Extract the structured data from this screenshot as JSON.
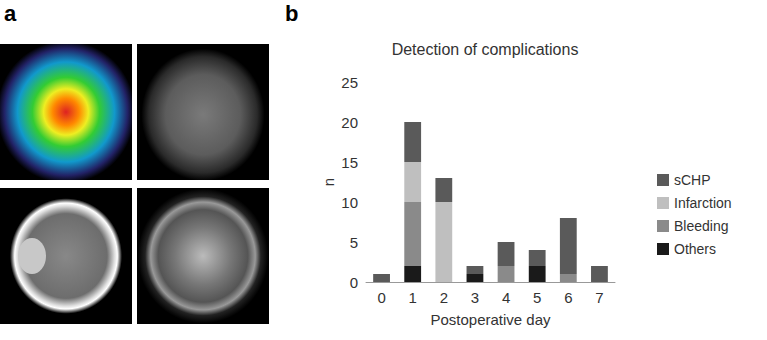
{
  "panel_labels": [
    "a",
    "b"
  ],
  "chart_data": {
    "type": "bar",
    "title": "Detection of complications",
    "x_label": "Postoperative day",
    "y_label": "n",
    "categories": [
      "0",
      "1",
      "2",
      "3",
      "4",
      "5",
      "6",
      "7"
    ],
    "stacked": true,
    "grid": false,
    "legend": "right",
    "ylim": [
      0,
      25
    ],
    "yticks": [
      0,
      5,
      10,
      15,
      20,
      25
    ],
    "series": [
      {
        "name": "sCHP",
        "color": "#5a5a5a",
        "values": [
          1,
          5,
          3,
          1,
          3,
          2,
          7,
          2
        ]
      },
      {
        "name": "Infarction",
        "color": "#bfbfbf",
        "values": [
          0,
          5,
          10,
          0,
          0,
          0,
          0,
          0
        ]
      },
      {
        "name": "Bleeding",
        "color": "#8a8a8a",
        "values": [
          0,
          8,
          0,
          0,
          2,
          0,
          1,
          0
        ]
      },
      {
        "name": "Others",
        "color": "#1a1a1a",
        "values": [
          0,
          2,
          0,
          1,
          0,
          2,
          0,
          0
        ]
      }
    ]
  }
}
